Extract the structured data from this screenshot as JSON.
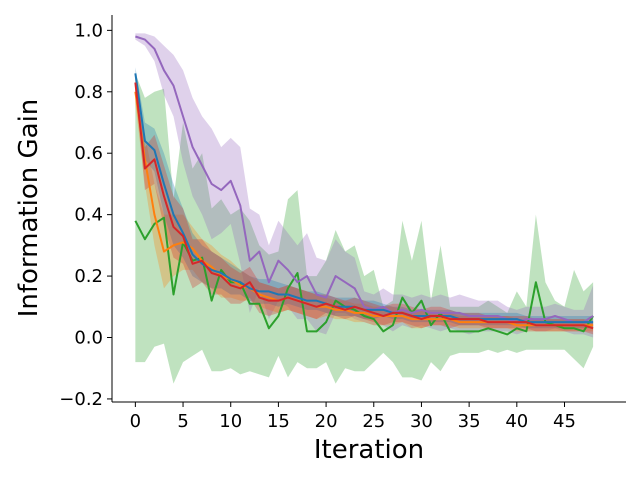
{
  "chart_data": {
    "type": "line",
    "xlabel": "Iteration",
    "ylabel": "Information Gain",
    "xlim": [
      -2.45,
      51.45
    ],
    "ylim": [
      -0.21,
      1.05
    ],
    "xticks": [
      0,
      5,
      10,
      15,
      20,
      25,
      30,
      35,
      40,
      45
    ],
    "yticks": [
      -0.2,
      0.0,
      0.2,
      0.4,
      0.6,
      0.8,
      1.0
    ],
    "ytick_labels": [
      "−0.2",
      "0.0",
      "0.2",
      "0.4",
      "0.6",
      "0.8",
      "1.0"
    ],
    "grid": false,
    "legend": "none",
    "series": [
      {
        "color": "#2ca02c",
        "values": [
          0.38,
          0.32,
          0.37,
          0.39,
          0.14,
          0.31,
          0.25,
          0.26,
          0.12,
          0.22,
          0.18,
          0.18,
          0.11,
          0.11,
          0.03,
          0.07,
          0.16,
          0.21,
          0.02,
          0.02,
          0.05,
          0.12,
          0.1,
          0.09,
          0.07,
          0.06,
          0.02,
          0.04,
          0.13,
          0.08,
          0.12,
          0.04,
          0.08,
          0.02,
          0.02,
          0.02,
          0.02,
          0.03,
          0.02,
          0.01,
          0.03,
          0.02,
          0.18,
          0.05,
          0.04,
          0.03,
          0.03,
          0.02,
          0.07
        ],
        "upper": [
          0.86,
          0.78,
          0.8,
          0.81,
          0.45,
          0.7,
          0.55,
          0.6,
          0.42,
          0.45,
          0.4,
          0.42,
          0.38,
          0.3,
          0.27,
          0.28,
          0.45,
          0.48,
          0.2,
          0.2,
          0.25,
          0.35,
          0.28,
          0.3,
          0.2,
          0.22,
          0.1,
          0.12,
          0.38,
          0.25,
          0.38,
          0.12,
          0.3,
          0.1,
          0.1,
          0.1,
          0.1,
          0.12,
          0.1,
          0.08,
          0.15,
          0.1,
          0.4,
          0.18,
          0.12,
          0.1,
          0.22,
          0.15,
          0.18
        ],
        "lower": [
          -0.08,
          -0.08,
          -0.03,
          -0.02,
          -0.15,
          -0.08,
          -0.06,
          -0.04,
          -0.11,
          -0.11,
          -0.1,
          -0.12,
          -0.11,
          -0.12,
          -0.13,
          -0.06,
          -0.13,
          -0.08,
          -0.1,
          -0.1,
          -0.08,
          -0.15,
          -0.1,
          -0.11,
          -0.11,
          -0.08,
          -0.05,
          -0.08,
          -0.13,
          -0.13,
          -0.14,
          -0.08,
          -0.11,
          -0.06,
          -0.05,
          -0.05,
          -0.05,
          -0.04,
          -0.05,
          -0.04,
          -0.05,
          -0.04,
          -0.04,
          -0.04,
          -0.04,
          -0.04,
          -0.07,
          -0.1,
          -0.03
        ]
      },
      {
        "color": "#9467bd",
        "values": [
          0.98,
          0.97,
          0.94,
          0.87,
          0.82,
          0.72,
          0.62,
          0.56,
          0.5,
          0.48,
          0.51,
          0.43,
          0.25,
          0.28,
          0.18,
          0.25,
          0.22,
          0.18,
          0.2,
          0.14,
          0.13,
          0.2,
          0.18,
          0.16,
          0.1,
          0.09,
          0.1,
          0.08,
          0.09,
          0.08,
          0.09,
          0.08,
          0.08,
          0.08,
          0.08,
          0.07,
          0.07,
          0.07,
          0.07,
          0.06,
          0.05,
          0.06,
          0.06,
          0.06,
          0.07,
          0.06,
          0.05,
          0.05,
          0.07
        ],
        "upper": [
          0.99,
          0.99,
          0.98,
          0.95,
          0.92,
          0.87,
          0.78,
          0.72,
          0.68,
          0.62,
          0.65,
          0.62,
          0.42,
          0.4,
          0.3,
          0.38,
          0.34,
          0.3,
          0.34,
          0.26,
          0.25,
          0.32,
          0.28,
          0.26,
          0.15,
          0.14,
          0.16,
          0.14,
          0.14,
          0.13,
          0.14,
          0.13,
          0.14,
          0.13,
          0.14,
          0.13,
          0.12,
          0.12,
          0.12,
          0.1,
          0.09,
          0.1,
          0.1,
          0.1,
          0.11,
          0.1,
          0.09,
          0.09,
          0.17
        ],
        "lower": [
          0.97,
          0.95,
          0.9,
          0.79,
          0.72,
          0.57,
          0.46,
          0.4,
          0.32,
          0.34,
          0.37,
          0.24,
          0.08,
          0.16,
          0.06,
          0.12,
          0.1,
          0.06,
          0.06,
          0.02,
          0.01,
          0.08,
          0.08,
          0.06,
          0.05,
          0.04,
          0.04,
          0.02,
          0.04,
          0.03,
          0.04,
          0.03,
          0.02,
          0.03,
          0.02,
          0.01,
          0.02,
          0.02,
          0.02,
          0.02,
          0.01,
          0.02,
          0.02,
          0.02,
          0.03,
          0.02,
          0.01,
          0.01,
          0.0
        ]
      },
      {
        "color": "#ff7f0e",
        "values": [
          0.8,
          0.58,
          0.4,
          0.28,
          0.3,
          0.31,
          0.29,
          0.25,
          0.23,
          0.2,
          0.19,
          0.17,
          0.16,
          0.14,
          0.13,
          0.12,
          0.13,
          0.12,
          0.11,
          0.1,
          0.1,
          0.09,
          0.09,
          0.08,
          0.08,
          0.07,
          0.07,
          0.07,
          0.07,
          0.06,
          0.06,
          0.06,
          0.06,
          0.06,
          0.05,
          0.05,
          0.05,
          0.05,
          0.05,
          0.05,
          0.04,
          0.04,
          0.04,
          0.04,
          0.04,
          0.04,
          0.04,
          0.04,
          0.04
        ],
        "upper": [
          0.84,
          0.66,
          0.5,
          0.4,
          0.4,
          0.4,
          0.36,
          0.32,
          0.3,
          0.27,
          0.25,
          0.22,
          0.2,
          0.18,
          0.17,
          0.16,
          0.17,
          0.16,
          0.15,
          0.14,
          0.13,
          0.12,
          0.12,
          0.11,
          0.11,
          0.1,
          0.1,
          0.1,
          0.09,
          0.09,
          0.09,
          0.08,
          0.08,
          0.08,
          0.07,
          0.07,
          0.07,
          0.07,
          0.07,
          0.07,
          0.06,
          0.06,
          0.06,
          0.06,
          0.06,
          0.06,
          0.06,
          0.06,
          0.06
        ],
        "lower": [
          0.76,
          0.5,
          0.3,
          0.16,
          0.2,
          0.22,
          0.22,
          0.18,
          0.16,
          0.13,
          0.13,
          0.12,
          0.12,
          0.1,
          0.09,
          0.08,
          0.09,
          0.08,
          0.07,
          0.06,
          0.07,
          0.06,
          0.06,
          0.05,
          0.05,
          0.04,
          0.04,
          0.04,
          0.05,
          0.03,
          0.03,
          0.04,
          0.04,
          0.04,
          0.03,
          0.03,
          0.03,
          0.03,
          0.03,
          0.03,
          0.02,
          0.02,
          0.02,
          0.02,
          0.02,
          0.02,
          0.02,
          0.02,
          0.02
        ]
      },
      {
        "color": "#1f77b4",
        "values": [
          0.86,
          0.64,
          0.61,
          0.5,
          0.4,
          0.34,
          0.27,
          0.24,
          0.22,
          0.21,
          0.19,
          0.18,
          0.16,
          0.15,
          0.15,
          0.14,
          0.14,
          0.13,
          0.12,
          0.12,
          0.11,
          0.1,
          0.1,
          0.1,
          0.09,
          0.09,
          0.09,
          0.08,
          0.08,
          0.07,
          0.07,
          0.07,
          0.07,
          0.07,
          0.06,
          0.06,
          0.06,
          0.06,
          0.06,
          0.06,
          0.06,
          0.05,
          0.05,
          0.05,
          0.05,
          0.05,
          0.05,
          0.05,
          0.05
        ],
        "upper": [
          0.88,
          0.7,
          0.68,
          0.6,
          0.5,
          0.42,
          0.34,
          0.3,
          0.28,
          0.26,
          0.24,
          0.22,
          0.2,
          0.19,
          0.19,
          0.18,
          0.17,
          0.16,
          0.15,
          0.15,
          0.14,
          0.13,
          0.13,
          0.13,
          0.12,
          0.12,
          0.11,
          0.1,
          0.1,
          0.09,
          0.09,
          0.09,
          0.09,
          0.09,
          0.08,
          0.08,
          0.08,
          0.08,
          0.08,
          0.08,
          0.08,
          0.07,
          0.07,
          0.07,
          0.07,
          0.07,
          0.07,
          0.07,
          0.07
        ],
        "lower": [
          0.84,
          0.58,
          0.54,
          0.4,
          0.3,
          0.26,
          0.2,
          0.18,
          0.16,
          0.16,
          0.14,
          0.14,
          0.12,
          0.11,
          0.11,
          0.1,
          0.11,
          0.1,
          0.09,
          0.09,
          0.08,
          0.07,
          0.07,
          0.07,
          0.06,
          0.06,
          0.07,
          0.06,
          0.06,
          0.05,
          0.05,
          0.05,
          0.05,
          0.05,
          0.04,
          0.04,
          0.04,
          0.04,
          0.04,
          0.04,
          0.04,
          0.03,
          0.03,
          0.03,
          0.03,
          0.03,
          0.03,
          0.03,
          0.03
        ]
      },
      {
        "color": "#d62728",
        "values": [
          0.83,
          0.55,
          0.58,
          0.46,
          0.36,
          0.33,
          0.24,
          0.25,
          0.21,
          0.2,
          0.17,
          0.16,
          0.18,
          0.13,
          0.12,
          0.12,
          0.13,
          0.12,
          0.11,
          0.1,
          0.11,
          0.1,
          0.09,
          0.1,
          0.09,
          0.08,
          0.07,
          0.08,
          0.08,
          0.07,
          0.06,
          0.07,
          0.07,
          0.06,
          0.06,
          0.06,
          0.06,
          0.05,
          0.05,
          0.05,
          0.05,
          0.05,
          0.04,
          0.04,
          0.04,
          0.04,
          0.04,
          0.04,
          0.03
        ],
        "upper": [
          0.86,
          0.62,
          0.66,
          0.56,
          0.46,
          0.42,
          0.32,
          0.32,
          0.28,
          0.26,
          0.23,
          0.21,
          0.23,
          0.18,
          0.17,
          0.16,
          0.17,
          0.16,
          0.15,
          0.14,
          0.14,
          0.13,
          0.12,
          0.13,
          0.12,
          0.11,
          0.1,
          0.11,
          0.11,
          0.1,
          0.09,
          0.1,
          0.1,
          0.09,
          0.08,
          0.08,
          0.08,
          0.07,
          0.07,
          0.07,
          0.07,
          0.07,
          0.06,
          0.06,
          0.06,
          0.06,
          0.06,
          0.06,
          0.05
        ],
        "lower": [
          0.8,
          0.48,
          0.5,
          0.36,
          0.26,
          0.24,
          0.16,
          0.18,
          0.14,
          0.14,
          0.11,
          0.11,
          0.13,
          0.08,
          0.07,
          0.08,
          0.09,
          0.08,
          0.07,
          0.06,
          0.08,
          0.07,
          0.06,
          0.07,
          0.06,
          0.05,
          0.04,
          0.05,
          0.05,
          0.04,
          0.03,
          0.04,
          0.04,
          0.03,
          0.04,
          0.04,
          0.04,
          0.03,
          0.03,
          0.03,
          0.03,
          0.03,
          0.02,
          0.02,
          0.02,
          0.02,
          0.02,
          0.02,
          0.01
        ]
      }
    ]
  }
}
